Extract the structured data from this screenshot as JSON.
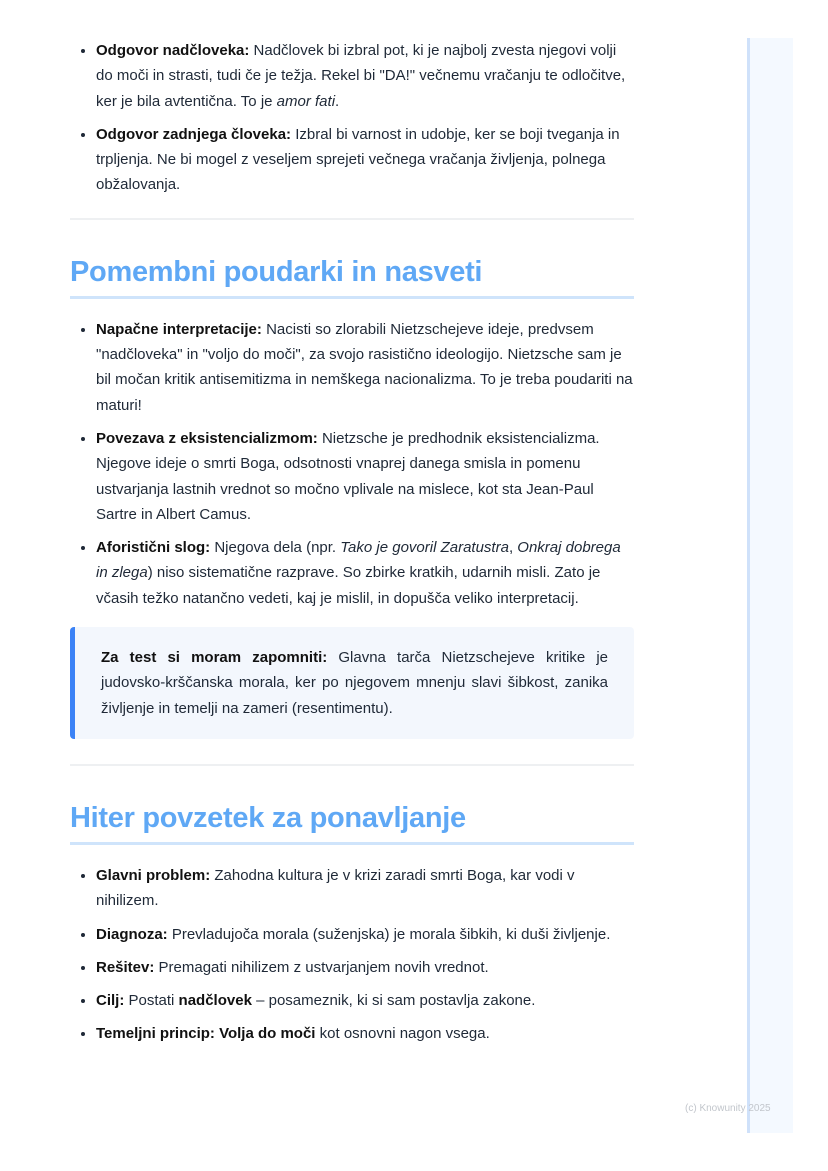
{
  "intro_list": [
    {
      "bold": "Odgovor nadčloveka:",
      "text": " Nadčlovek bi izbral pot, ki je najbolj zvesta njegovi volji do moči in strasti, tudi če je težja. Rekel bi \"DA!\" večnemu vračanju te odločitve, ker je bila avtentična. To je ",
      "italic": "amor fati",
      "tail": "."
    },
    {
      "bold": "Odgovor zadnjega človeka:",
      "text": " Izbral bi varnost in udobje, ker se boji tveganja in trpljenja. Ne bi mogel z veseljem sprejeti večnega vračanja življenja, polnega obžalovanja."
    }
  ],
  "section1": {
    "title": "Pomembni poudarki in nasveti",
    "items": [
      {
        "bold": "Napačne interpretacije:",
        "text": " Nacisti so zlorabili Nietzschejeve ideje, predvsem \"nadčloveka\" in \"voljo do moči\", za svojo rasistično ideologijo. Nietzsche sam je bil močan kritik antisemitizma in nemškega nacionalizma. To je treba poudariti na maturi!"
      },
      {
        "bold": "Povezava z eksistencializmom:",
        "text": " Nietzsche je predhodnik eksistencializma. Njegove ideje o smrti Boga, odsotnosti vnaprej danega smisla in pomenu ustvarjanja lastnih vrednot so močno vplivale na mislece, kot sta Jean-Paul Sartre in Albert Camus."
      },
      {
        "bold": "Aforistični slog:",
        "text1": " Njegova dela (npr. ",
        "italic1": "Tako je govoril Zaratustra",
        "sep": ", ",
        "italic2": "Onkraj dobrega in zlega",
        "text2": ") niso sistematične razprave. So zbirke kratkih, udarnih misli. Zato je včasih težko natančno vedeti, kaj je mislil, in dopušča veliko interpretacij."
      }
    ],
    "callout": {
      "bold": "Za test si moram zapomniti:",
      "text": " Glavna tarča Nietzschejeve kritike je judovsko-krščanska morala, ker po njegovem mnenju slavi šibkost, zanika življenje in temelji na zameri (resentimentu)."
    }
  },
  "section2": {
    "title": "Hiter povzetek za ponavljanje",
    "items": [
      {
        "bold": "Glavni problem:",
        "text": " Zahodna kultura je v krizi zaradi smrti Boga, kar vodi v nihilizem."
      },
      {
        "bold": "Diagnoza:",
        "text": " Prevladujoča morala (suženjska) je morala šibkih, ki duši življenje."
      },
      {
        "bold": "Rešitev:",
        "text": " Premagati nihilizem z ustvarjanjem novih vrednot."
      },
      {
        "bold": "Cilj:",
        "text": " Postati ",
        "bold2": "nadčlovek",
        "text2": " – posameznik, ki si sam postavlja zakone."
      },
      {
        "bold": "Temeljni princip: Volja do moči",
        "text": " kot osnovni nagon vsega."
      }
    ]
  },
  "footer": "(c) Knowunity 2025",
  "colors": {
    "heading": "#5fa8f5",
    "accent": "#3b82f6",
    "callout_bg": "#f3f7fd"
  }
}
